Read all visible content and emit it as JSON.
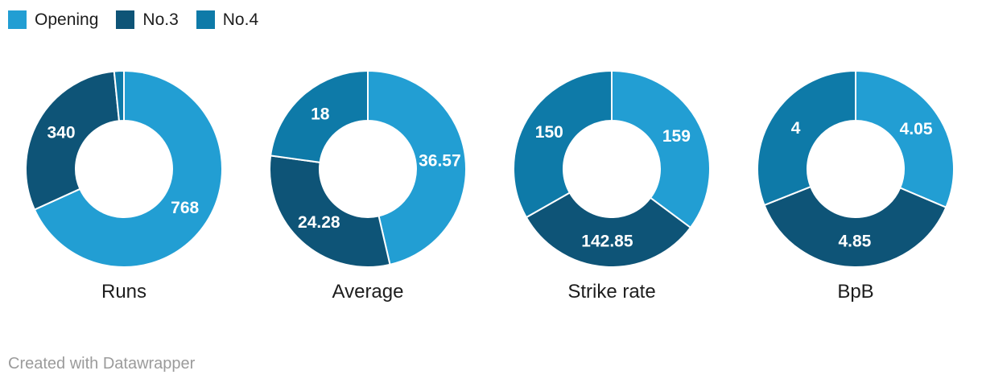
{
  "colors": {
    "background": "#ffffff",
    "slice_border": "#ffffff",
    "title_text": "#1d1d1d",
    "footer_text": "#9b9b9b",
    "data_label_text": "#ffffff"
  },
  "palette": [
    "#229ed3",
    "#0e5477",
    "#0e7aa8"
  ],
  "legend": {
    "items": [
      {
        "label": "Opening",
        "color": "#229ed3"
      },
      {
        "label": "No.3",
        "color": "#0e5477"
      },
      {
        "label": "No.4",
        "color": "#0e7aa8"
      }
    ]
  },
  "footer": {
    "credit": "Created with Datawrapper"
  },
  "chart_data": [
    {
      "type": "pie",
      "subtype": "donut",
      "title": "Runs",
      "categories": [
        "Opening",
        "No.3",
        "No.4"
      ],
      "values": [
        768,
        340,
        18
      ],
      "data_labels": [
        "768",
        "340",
        ""
      ],
      "start_angle": 0,
      "direction": "clockwise",
      "legend_position": "top-left"
    },
    {
      "type": "pie",
      "subtype": "donut",
      "title": "Average",
      "categories": [
        "Opening",
        "No.3",
        "No.4"
      ],
      "values": [
        36.57,
        24.28,
        18
      ],
      "data_labels": [
        "36.57",
        "24.28",
        "18"
      ],
      "start_angle": 0,
      "direction": "clockwise",
      "legend_position": "top-left"
    },
    {
      "type": "pie",
      "subtype": "donut",
      "title": "Strike rate",
      "categories": [
        "Opening",
        "No.3",
        "No.4"
      ],
      "values": [
        159,
        142.85,
        150
      ],
      "data_labels": [
        "159",
        "142.85",
        "150"
      ],
      "start_angle": 0,
      "direction": "clockwise",
      "legend_position": "top-left"
    },
    {
      "type": "pie",
      "subtype": "donut",
      "title": "BpB",
      "categories": [
        "Opening",
        "No.3",
        "No.4"
      ],
      "values": [
        4.05,
        4.85,
        4
      ],
      "data_labels": [
        "4.05",
        "4.85",
        "4"
      ],
      "start_angle": 0,
      "direction": "clockwise",
      "legend_position": "top-left"
    }
  ]
}
